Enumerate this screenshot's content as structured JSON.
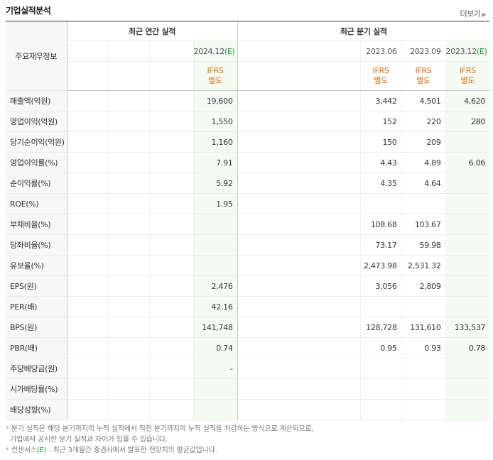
{
  "section_title": "기업실적분석",
  "more_link": {
    "label": "더보기",
    "arrow": "▶"
  },
  "header": {
    "row_label": "주요재무정보",
    "annual_group": "최근 연간 실적",
    "quarter_group": "최근 분기 실적",
    "annual_date": "2024.12",
    "annual_est": "(E)",
    "quarter_dates": [
      {
        "date": "2023.06",
        "est": ""
      },
      {
        "date": "2023.09",
        "est": ""
      },
      {
        "date": "2023.12",
        "est": "(E)"
      }
    ],
    "ifrs_top": "IFRS",
    "ifrs_bottom": "별도"
  },
  "rows": [
    {
      "label": "매출액(억원)",
      "annual": "19,600",
      "q1": "3,442",
      "q2": "4,501",
      "q3": "4,620"
    },
    {
      "label": "영업이익(억원)",
      "annual": "1,550",
      "q1": "152",
      "q2": "220",
      "q3": "280"
    },
    {
      "label": "당기순이익(억원)",
      "annual": "1,160",
      "q1": "150",
      "q2": "209",
      "q3": ""
    },
    {
      "label": "영업이익률(%)",
      "annual": "7.91",
      "q1": "4.43",
      "q2": "4.89",
      "q3": "6.06"
    },
    {
      "label": "순이익률(%)",
      "annual": "5.92",
      "q1": "4.35",
      "q2": "4.64",
      "q3": ""
    },
    {
      "label": "ROE(%)",
      "annual": "1.95",
      "q1": "",
      "q2": "",
      "q3": ""
    },
    {
      "label": "부채비율(%)",
      "annual": "",
      "q1": "108.68",
      "q2": "103.67",
      "q3": ""
    },
    {
      "label": "당좌비율(%)",
      "annual": "",
      "q1": "73.17",
      "q2": "59.98",
      "q3": ""
    },
    {
      "label": "유보율(%)",
      "annual": "",
      "q1": "2,473.98",
      "q2": "2,531.32",
      "q3": ""
    },
    {
      "label": "EPS(원)",
      "annual": "2,476",
      "q1": "3,056",
      "q2": "2,809",
      "q3": ""
    },
    {
      "label": "PER(배)",
      "annual": "42.16",
      "q1": "",
      "q2": "",
      "q3": ""
    },
    {
      "label": "BPS(원)",
      "annual": "141,748",
      "q1": "128,728",
      "q2": "131,610",
      "q3": "133,537"
    },
    {
      "label": "PBR(배)",
      "annual": "0.74",
      "q1": "0.95",
      "q2": "0.93",
      "q3": "0.78"
    },
    {
      "label": "주당배당금(원)",
      "annual": "-",
      "q1": "",
      "q2": "",
      "q3": ""
    },
    {
      "label": "시가배당률(%)",
      "annual": "",
      "q1": "",
      "q2": "",
      "q3": ""
    },
    {
      "label": "배당성향(%)",
      "annual": "",
      "q1": "",
      "q2": "",
      "q3": ""
    }
  ],
  "notes": {
    "bullet": "*",
    "line1": "분기 실적은 해당 분기까지의 누적 실적에서 직전 분기까지의 누적 실적을 차감하는 방식으로 계산되므로,",
    "line2": "기업에서 공시한 분기 실적과 차이가 있을 수 있습니다.",
    "line3_prefix": "컨센서스",
    "line3_e": "(E)",
    "line3_suffix": ": 최근 3개월간 증권사에서 발표한 전망치의 평균값입니다."
  },
  "colors": {
    "estimate_green": "#1d9a45",
    "ifrs_orange": "#e46d0b",
    "estimate_bg": "#f5fbf3"
  }
}
